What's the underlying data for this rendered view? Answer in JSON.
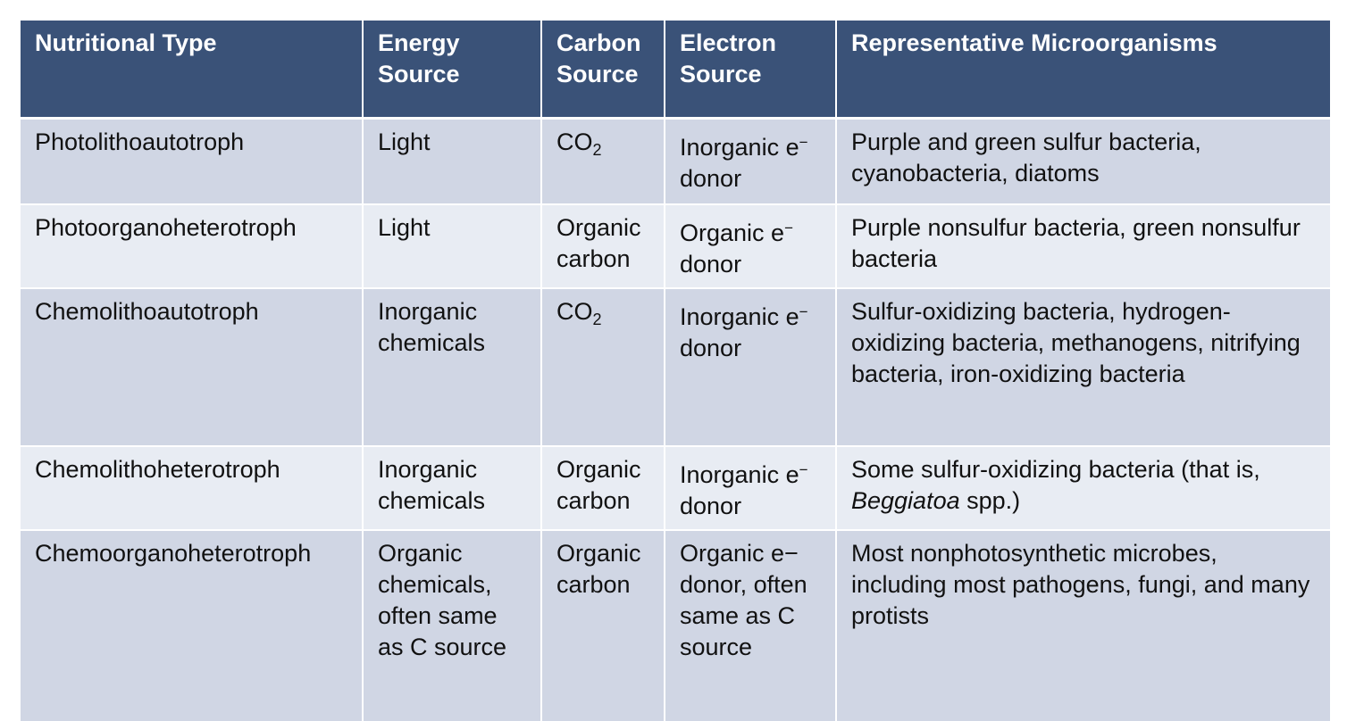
{
  "headers": {
    "type": "Nutritional Type",
    "energy": "Energy Source",
    "carbon": "Carbon Source",
    "electron": "Electron Source",
    "organisms": "Representative Microorganisms"
  },
  "rows": [
    {
      "type": "Photolithoautotroph",
      "energy": "Light",
      "carbon_main": "CO",
      "carbon_sub": "2",
      "electron_main": "Inorganic e",
      "electron_sup": "−",
      "electron_rest": "donor",
      "organisms": "Purple and green sulfur bacteria, cyanobacteria, diatoms"
    },
    {
      "type": "Photoorganoheterotroph",
      "energy": "Light",
      "carbon": "Organic carbon",
      "electron_main": "Organic e",
      "electron_sup": "−",
      "electron_rest": "donor",
      "organisms": "Purple nonsulfur bacteria, green nonsulfur bacteria"
    },
    {
      "type": "Chemolithoautotroph",
      "energy": "Inorganic chemicals",
      "carbon_main": "CO",
      "carbon_sub": "2",
      "electron_main": "Inorganic e",
      "electron_sup": "−",
      "electron_rest": "donor",
      "organisms": "Sulfur-oxidizing bacteria, hydrogen-oxidizing bacteria, methanogens, nitrifying bacteria, iron-oxidizing bacteria"
    },
    {
      "type": "Chemolithoheterotroph",
      "energy": "Inorganic chemicals",
      "carbon": "Organic carbon",
      "electron_main": "Inorganic e",
      "electron_sup": "−",
      "electron_rest": "donor",
      "organisms_pre": "Some sulfur-oxidizing bacteria (that is,",
      "organisms_italic": "Beggiatoa",
      "organisms_post": "spp.)"
    },
    {
      "type": "Chemoorganoheterotroph",
      "energy": "Organic chemicals, often same as C source",
      "carbon": "Organic carbon",
      "electron": "Organic e− donor, often same as C source",
      "organisms": "Most nonphotosynthetic microbes, including most pathogens, fungi, and many protists"
    }
  ],
  "colors": {
    "header_bg": "#3a5278",
    "row_dark": "#d0d6e4",
    "row_light": "#e8ecf3"
  }
}
